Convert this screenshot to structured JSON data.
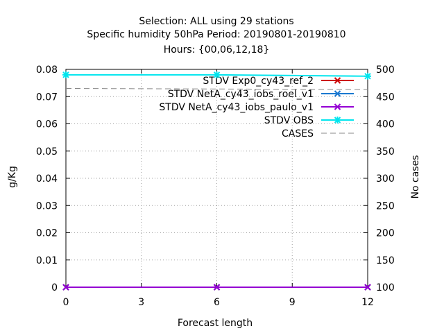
{
  "chart_data": {
    "type": "line",
    "title_lines": [
      "Selection: ALL using     29 stations",
      "Specific humidity 50hPa   Period: 20190801-20190810",
      "Hours: {00,06,12,18}"
    ],
    "xlabel": "Forecast length",
    "ylabel": "g/Kg",
    "y2label": "No cases",
    "xlim": [
      0,
      12
    ],
    "ylim": [
      0,
      0.08
    ],
    "y2lim": [
      100,
      500
    ],
    "x_ticks": [
      "0",
      "3",
      "6",
      "9",
      "12"
    ],
    "y_ticks": [
      "0",
      "0.01",
      "0.02",
      "0.03",
      "0.04",
      "0.05",
      "0.06",
      "0.07",
      "0.08"
    ],
    "y2_ticks": [
      "100",
      "150",
      "200",
      "250",
      "300",
      "350",
      "400",
      "450",
      "500"
    ],
    "grid": true,
    "legend_position": "top-right",
    "x": [
      0,
      6,
      12
    ],
    "series": [
      {
        "name": "STDV Exp0_cy43_ref_2",
        "color": "#cc0000",
        "axis": "y1",
        "style": "solid",
        "marker": "x",
        "values": [
          0,
          0,
          0
        ]
      },
      {
        "name": "STDV NetA_cy43_iobs_roel_v1",
        "color": "#1a78d0",
        "axis": "y1",
        "style": "solid",
        "marker": "x",
        "values": [
          0,
          0,
          0
        ]
      },
      {
        "name": "STDV NetA_cy43_iobs_paulo_v1",
        "color": "#9400d3",
        "axis": "y1",
        "style": "solid",
        "marker": "x",
        "values": [
          0,
          0,
          0
        ]
      },
      {
        "name": "STDV OBS",
        "color": "#00e5ee",
        "axis": "y1",
        "style": "solid",
        "marker": "star",
        "values": [
          0.078,
          0.078,
          0.0775
        ]
      },
      {
        "name": "CASES",
        "color": "#888888",
        "axis": "y2",
        "style": "dashed",
        "marker": "none",
        "values": [
          465,
          464,
          463
        ]
      }
    ]
  }
}
